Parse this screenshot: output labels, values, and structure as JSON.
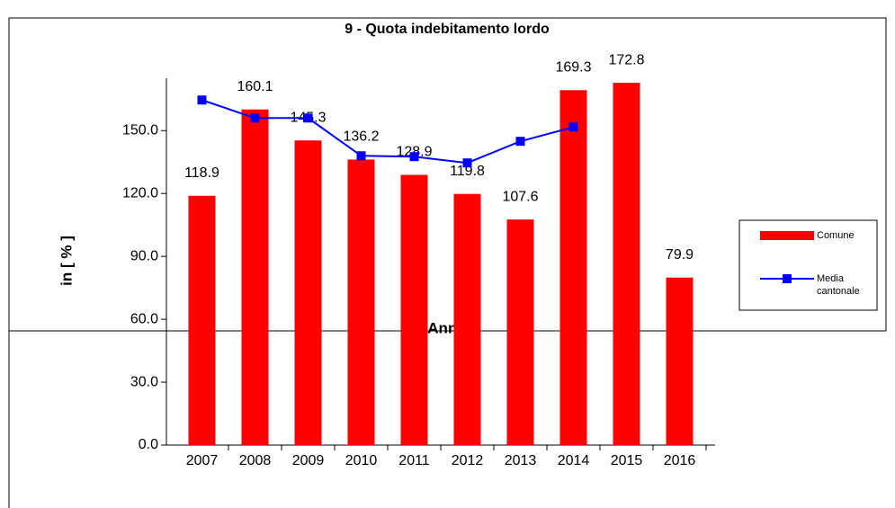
{
  "chart_data": {
    "type": "bar",
    "title": "9 - Quota indebitamento lordo",
    "x_label": "Anno",
    "y_label": "in [ % ]",
    "categories": [
      "2007",
      "2008",
      "2009",
      "2010",
      "2011",
      "2012",
      "2013",
      "2014",
      "2015",
      "2016"
    ],
    "series": [
      {
        "name": "Comune",
        "type": "bar",
        "color": "#ff0000",
        "values": [
          118.9,
          160.1,
          145.3,
          136.2,
          128.9,
          119.8,
          107.6,
          169.3,
          172.8,
          79.9
        ]
      },
      {
        "name": "Media cantonale",
        "type": "line",
        "color": "#0000ff",
        "values": [
          164.6,
          156,
          156,
          138,
          137.6,
          134.6,
          144.9,
          151.7,
          null,
          null
        ]
      }
    ],
    "ylim": [
      0,
      175
    ],
    "yticks": [
      {
        "value": 0,
        "label": "0.0"
      },
      {
        "value": 30,
        "label": "30.0"
      },
      {
        "value": 60,
        "label": "60.0"
      },
      {
        "value": 90,
        "label": "90.0"
      },
      {
        "value": 120,
        "label": "120.0"
      },
      {
        "value": 150,
        "label": "150.0"
      }
    ],
    "legend": "right"
  }
}
